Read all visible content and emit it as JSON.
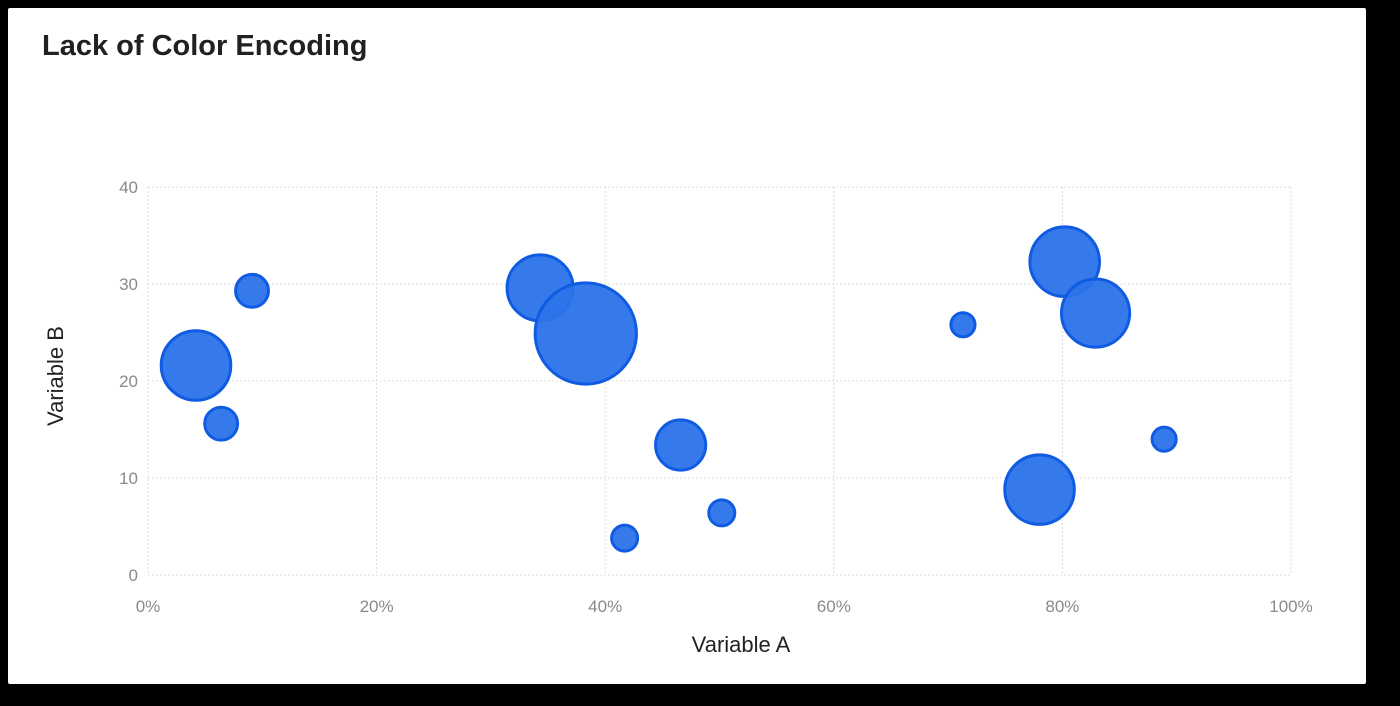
{
  "chart_data": {
    "type": "scatter",
    "variant": "bubble",
    "title": "Lack of Color Encoding",
    "xlabel": "Variable A",
    "ylabel": "Variable B",
    "xlim": [
      0,
      1
    ],
    "ylim": [
      0,
      40
    ],
    "x_ticks": [
      0,
      0.2,
      0.4,
      0.6,
      0.8,
      1.0
    ],
    "x_tick_labels": [
      "0%",
      "20%",
      "40%",
      "60%",
      "80%",
      "100%"
    ],
    "y_ticks": [
      0,
      10,
      20,
      30,
      40
    ],
    "y_tick_labels": [
      "0",
      "10",
      "20",
      "30",
      "40"
    ],
    "grid": true,
    "legend": "none",
    "colors": {
      "fill": "#2d74ea",
      "stroke": "#0f5ce3"
    },
    "series": [
      {
        "points": [
          {
            "x": 0.042,
            "y": 21.6,
            "size": 2.5
          },
          {
            "x": 0.064,
            "y": 15.6,
            "size": 0.56
          },
          {
            "x": 0.091,
            "y": 29.3,
            "size": 0.56
          },
          {
            "x": 0.343,
            "y": 29.6,
            "size": 2.25
          },
          {
            "x": 0.383,
            "y": 24.9,
            "size": 5.3
          },
          {
            "x": 0.417,
            "y": 3.8,
            "size": 0.35
          },
          {
            "x": 0.466,
            "y": 13.4,
            "size": 1.3
          },
          {
            "x": 0.502,
            "y": 6.4,
            "size": 0.35
          },
          {
            "x": 0.713,
            "y": 25.8,
            "size": 0.3
          },
          {
            "x": 0.78,
            "y": 8.8,
            "size": 2.5
          },
          {
            "x": 0.802,
            "y": 32.3,
            "size": 2.5
          },
          {
            "x": 0.829,
            "y": 27.0,
            "size": 2.4
          },
          {
            "x": 0.889,
            "y": 14.0,
            "size": 0.3
          }
        ]
      }
    ]
  }
}
